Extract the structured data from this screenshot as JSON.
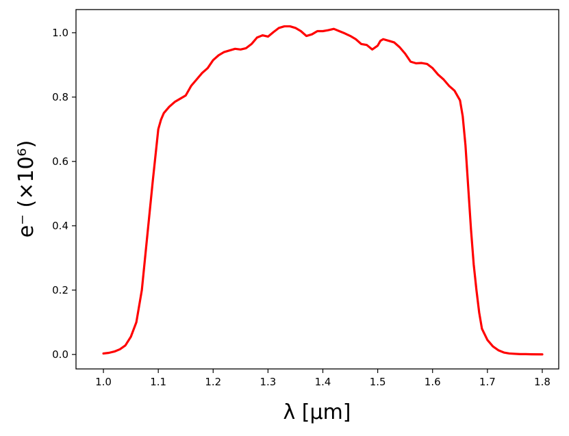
{
  "chart_data": {
    "type": "line",
    "title": "",
    "xlabel": "λ [μm]",
    "ylabel": "e⁻ (×10⁶)",
    "xlim": [
      0.95,
      1.83
    ],
    "ylim": [
      -0.045,
      1.072
    ],
    "grid": false,
    "x_ticks": [
      1.0,
      1.1,
      1.2,
      1.3,
      1.4,
      1.5,
      1.6,
      1.7,
      1.8
    ],
    "x_tick_labels": [
      "1.0",
      "1.1",
      "1.2",
      "1.3",
      "1.4",
      "1.5",
      "1.6",
      "1.7",
      "1.8"
    ],
    "y_ticks": [
      0.0,
      0.2,
      0.4,
      0.6,
      0.8,
      1.0
    ],
    "y_tick_labels": [
      "0.0",
      "0.2",
      "0.4",
      "0.6",
      "0.8",
      "1.0"
    ],
    "series": [
      {
        "color": "#ff0000",
        "x": [
          1.0,
          1.01,
          1.02,
          1.03,
          1.04,
          1.05,
          1.06,
          1.07,
          1.08,
          1.09,
          1.1,
          1.105,
          1.11,
          1.12,
          1.13,
          1.14,
          1.15,
          1.16,
          1.17,
          1.18,
          1.19,
          1.2,
          1.21,
          1.22,
          1.23,
          1.24,
          1.25,
          1.26,
          1.27,
          1.28,
          1.29,
          1.3,
          1.31,
          1.32,
          1.33,
          1.34,
          1.35,
          1.36,
          1.37,
          1.38,
          1.39,
          1.4,
          1.41,
          1.42,
          1.43,
          1.44,
          1.45,
          1.46,
          1.47,
          1.48,
          1.49,
          1.5,
          1.505,
          1.51,
          1.52,
          1.53,
          1.54,
          1.55,
          1.56,
          1.57,
          1.58,
          1.59,
          1.6,
          1.61,
          1.62,
          1.63,
          1.64,
          1.65,
          1.655,
          1.66,
          1.665,
          1.67,
          1.675,
          1.68,
          1.685,
          1.69,
          1.7,
          1.71,
          1.72,
          1.73,
          1.74,
          1.75,
          1.76,
          1.77,
          1.78,
          1.8
        ],
        "y": [
          0.003,
          0.005,
          0.009,
          0.016,
          0.028,
          0.055,
          0.1,
          0.2,
          0.37,
          0.54,
          0.7,
          0.73,
          0.75,
          0.77,
          0.785,
          0.795,
          0.805,
          0.835,
          0.855,
          0.875,
          0.89,
          0.915,
          0.93,
          0.94,
          0.945,
          0.95,
          0.948,
          0.952,
          0.965,
          0.985,
          0.992,
          0.988,
          1.002,
          1.015,
          1.02,
          1.02,
          1.015,
          1.005,
          0.99,
          0.995,
          1.005,
          1.005,
          1.008,
          1.012,
          1.005,
          0.998,
          0.99,
          0.98,
          0.965,
          0.962,
          0.948,
          0.96,
          0.975,
          0.98,
          0.975,
          0.97,
          0.955,
          0.935,
          0.91,
          0.905,
          0.906,
          0.903,
          0.89,
          0.87,
          0.855,
          0.835,
          0.82,
          0.79,
          0.74,
          0.65,
          0.52,
          0.39,
          0.28,
          0.2,
          0.13,
          0.08,
          0.045,
          0.025,
          0.013,
          0.006,
          0.003,
          0.002,
          0.001,
          0.001,
          0.0005,
          0.0002
        ]
      }
    ]
  }
}
